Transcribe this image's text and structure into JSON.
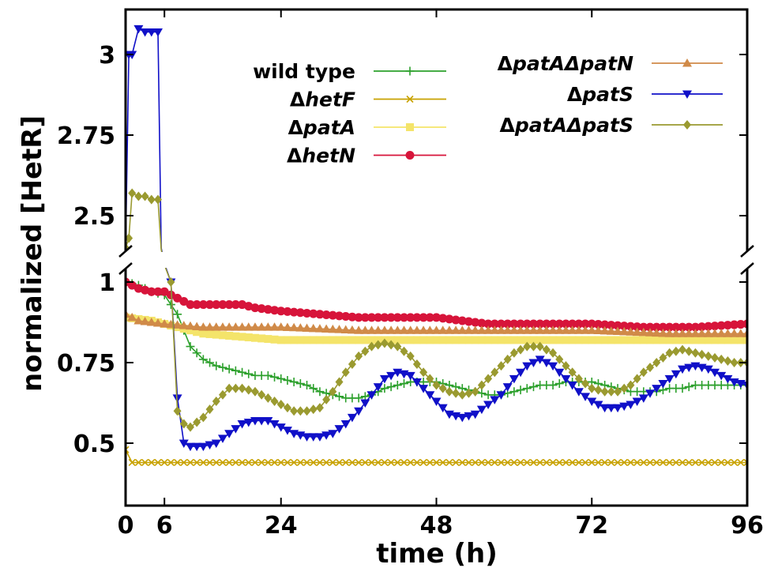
{
  "chart_data": {
    "type": "line",
    "xlabel": "time (h)",
    "ylabel": "normalized [HetR]",
    "xlim": [
      0,
      96
    ],
    "ylim": [
      0.3,
      3.15
    ],
    "y_axis_break": [
      1.04,
      2.4
    ],
    "x_ticks": [
      "0",
      "6",
      "24",
      "48",
      "72",
      "96"
    ],
    "y_ticks": [
      "0.5",
      "0.75",
      "1",
      "2.5",
      "2.75",
      "3"
    ],
    "grid": false,
    "legend_position": "top-right",
    "series": [
      {
        "name": "wild type",
        "name_prefix": "",
        "name_italic": "",
        "color": "#2ca02c",
        "marker": "plus",
        "points": [
          [
            0,
            1.0
          ],
          [
            2,
            0.99
          ],
          [
            4,
            0.97
          ],
          [
            6,
            0.96
          ],
          [
            8,
            0.9
          ],
          [
            10,
            0.8
          ],
          [
            12,
            0.76
          ],
          [
            14,
            0.74
          ],
          [
            16,
            0.73
          ],
          [
            18,
            0.72
          ],
          [
            20,
            0.71
          ],
          [
            22,
            0.71
          ],
          [
            24,
            0.7
          ],
          [
            26,
            0.69
          ],
          [
            28,
            0.68
          ],
          [
            30,
            0.66
          ],
          [
            32,
            0.65
          ],
          [
            34,
            0.64
          ],
          [
            36,
            0.64
          ],
          [
            38,
            0.65
          ],
          [
            40,
            0.67
          ],
          [
            42,
            0.68
          ],
          [
            44,
            0.69
          ],
          [
            46,
            0.69
          ],
          [
            48,
            0.69
          ],
          [
            50,
            0.68
          ],
          [
            52,
            0.67
          ],
          [
            54,
            0.66
          ],
          [
            56,
            0.65
          ],
          [
            58,
            0.65
          ],
          [
            60,
            0.66
          ],
          [
            62,
            0.67
          ],
          [
            64,
            0.68
          ],
          [
            66,
            0.68
          ],
          [
            68,
            0.69
          ],
          [
            70,
            0.69
          ],
          [
            72,
            0.69
          ],
          [
            74,
            0.68
          ],
          [
            76,
            0.67
          ],
          [
            78,
            0.66
          ],
          [
            80,
            0.66
          ],
          [
            82,
            0.66
          ],
          [
            84,
            0.67
          ],
          [
            86,
            0.67
          ],
          [
            88,
            0.68
          ],
          [
            90,
            0.68
          ],
          [
            92,
            0.68
          ],
          [
            94,
            0.68
          ],
          [
            96,
            0.68
          ]
        ]
      },
      {
        "name": "ΔhetF",
        "name_prefix": "Δ",
        "name_italic": "hetF",
        "color": "#c8a200",
        "marker": "x",
        "points": [
          [
            0,
            0.48
          ],
          [
            1,
            0.44
          ],
          [
            2,
            0.44
          ],
          [
            48,
            0.44
          ],
          [
            96,
            0.44
          ]
        ]
      },
      {
        "name": "ΔpatA",
        "name_prefix": "Δ",
        "name_italic": "patA",
        "color": "#f4e46a",
        "marker": "square",
        "points": [
          [
            0,
            0.89
          ],
          [
            4,
            0.88
          ],
          [
            8,
            0.86
          ],
          [
            12,
            0.84
          ],
          [
            18,
            0.83
          ],
          [
            24,
            0.82
          ],
          [
            32,
            0.82
          ],
          [
            48,
            0.82
          ],
          [
            64,
            0.82
          ],
          [
            80,
            0.82
          ],
          [
            96,
            0.82
          ]
        ]
      },
      {
        "name": "ΔhetN",
        "name_prefix": "Δ",
        "name_italic": "hetN",
        "color": "#d7143a",
        "marker": "circle",
        "points": [
          [
            0,
            1.0
          ],
          [
            2,
            0.98
          ],
          [
            4,
            0.97
          ],
          [
            6,
            0.97
          ],
          [
            8,
            0.95
          ],
          [
            10,
            0.93
          ],
          [
            14,
            0.93
          ],
          [
            16,
            0.93
          ],
          [
            18,
            0.93
          ],
          [
            20,
            0.92
          ],
          [
            24,
            0.91
          ],
          [
            30,
            0.9
          ],
          [
            36,
            0.89
          ],
          [
            42,
            0.89
          ],
          [
            48,
            0.89
          ],
          [
            52,
            0.88
          ],
          [
            56,
            0.87
          ],
          [
            60,
            0.87
          ],
          [
            64,
            0.87
          ],
          [
            68,
            0.87
          ],
          [
            72,
            0.87
          ],
          [
            80,
            0.86
          ],
          [
            88,
            0.86
          ],
          [
            96,
            0.87
          ]
        ]
      },
      {
        "name": "ΔpatAΔpatN",
        "name_prefix": "Δ",
        "name_italic": "patAΔpatN",
        "color": "#d08a48",
        "marker": "triangle-up",
        "points": [
          [
            0,
            0.9
          ],
          [
            2,
            0.88
          ],
          [
            6,
            0.87
          ],
          [
            12,
            0.86
          ],
          [
            24,
            0.86
          ],
          [
            36,
            0.85
          ],
          [
            48,
            0.85
          ],
          [
            60,
            0.85
          ],
          [
            72,
            0.85
          ],
          [
            84,
            0.84
          ],
          [
            96,
            0.84
          ]
        ]
      },
      {
        "name": "ΔpatS",
        "name_prefix": "Δ",
        "name_italic": "patS",
        "color": "#1010c8",
        "marker": "triangle-down",
        "points": [
          [
            0,
            2.3
          ],
          [
            0.5,
            3.0
          ],
          [
            1,
            3.0
          ],
          [
            2,
            3.08
          ],
          [
            3,
            3.07
          ],
          [
            4,
            3.07
          ],
          [
            5,
            3.07
          ],
          [
            5.5,
            2.4
          ],
          [
            6,
            1.4
          ],
          [
            7,
            1.0
          ],
          [
            8,
            0.64
          ],
          [
            9,
            0.5
          ],
          [
            10,
            0.49
          ],
          [
            12,
            0.49
          ],
          [
            14,
            0.5
          ],
          [
            16,
            0.53
          ],
          [
            18,
            0.56
          ],
          [
            20,
            0.57
          ],
          [
            22,
            0.57
          ],
          [
            24,
            0.55
          ],
          [
            26,
            0.53
          ],
          [
            28,
            0.52
          ],
          [
            30,
            0.52
          ],
          [
            32,
            0.53
          ],
          [
            34,
            0.56
          ],
          [
            36,
            0.6
          ],
          [
            38,
            0.65
          ],
          [
            40,
            0.7
          ],
          [
            42,
            0.72
          ],
          [
            44,
            0.71
          ],
          [
            46,
            0.67
          ],
          [
            48,
            0.63
          ],
          [
            50,
            0.59
          ],
          [
            52,
            0.58
          ],
          [
            54,
            0.59
          ],
          [
            56,
            0.62
          ],
          [
            58,
            0.65
          ],
          [
            60,
            0.7
          ],
          [
            62,
            0.74
          ],
          [
            64,
            0.76
          ],
          [
            66,
            0.74
          ],
          [
            68,
            0.7
          ],
          [
            70,
            0.66
          ],
          [
            72,
            0.63
          ],
          [
            74,
            0.61
          ],
          [
            76,
            0.61
          ],
          [
            78,
            0.62
          ],
          [
            80,
            0.64
          ],
          [
            82,
            0.67
          ],
          [
            84,
            0.7
          ],
          [
            86,
            0.73
          ],
          [
            88,
            0.74
          ],
          [
            90,
            0.73
          ],
          [
            92,
            0.71
          ],
          [
            94,
            0.69
          ],
          [
            96,
            0.68
          ]
        ]
      },
      {
        "name": "ΔpatAΔpatS",
        "name_prefix": "Δ",
        "name_italic": "patAΔpatS",
        "color": "#9a9a30",
        "marker": "diamond",
        "points": [
          [
            0,
            2.4
          ],
          [
            0.5,
            2.43
          ],
          [
            1,
            2.57
          ],
          [
            2,
            2.56
          ],
          [
            3,
            2.56
          ],
          [
            4,
            2.55
          ],
          [
            5,
            2.55
          ],
          [
            5.5,
            2.3
          ],
          [
            6,
            1.3
          ],
          [
            7,
            1.0
          ],
          [
            8,
            0.6
          ],
          [
            9,
            0.56
          ],
          [
            10,
            0.55
          ],
          [
            12,
            0.58
          ],
          [
            14,
            0.63
          ],
          [
            16,
            0.67
          ],
          [
            18,
            0.67
          ],
          [
            20,
            0.66
          ],
          [
            22,
            0.64
          ],
          [
            24,
            0.62
          ],
          [
            26,
            0.6
          ],
          [
            28,
            0.6
          ],
          [
            30,
            0.61
          ],
          [
            32,
            0.66
          ],
          [
            34,
            0.72
          ],
          [
            36,
            0.77
          ],
          [
            38,
            0.8
          ],
          [
            40,
            0.81
          ],
          [
            42,
            0.8
          ],
          [
            44,
            0.77
          ],
          [
            46,
            0.72
          ],
          [
            48,
            0.68
          ],
          [
            50,
            0.66
          ],
          [
            52,
            0.65
          ],
          [
            54,
            0.66
          ],
          [
            56,
            0.7
          ],
          [
            58,
            0.74
          ],
          [
            60,
            0.78
          ],
          [
            62,
            0.8
          ],
          [
            64,
            0.8
          ],
          [
            66,
            0.78
          ],
          [
            68,
            0.74
          ],
          [
            70,
            0.7
          ],
          [
            72,
            0.67
          ],
          [
            74,
            0.66
          ],
          [
            76,
            0.66
          ],
          [
            78,
            0.68
          ],
          [
            80,
            0.72
          ],
          [
            82,
            0.75
          ],
          [
            84,
            0.78
          ],
          [
            86,
            0.79
          ],
          [
            88,
            0.78
          ],
          [
            90,
            0.77
          ],
          [
            92,
            0.76
          ],
          [
            94,
            0.75
          ],
          [
            96,
            0.75
          ]
        ]
      }
    ]
  }
}
